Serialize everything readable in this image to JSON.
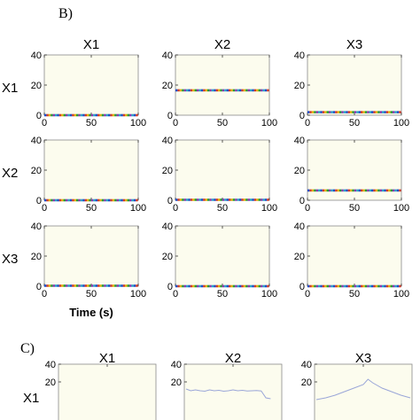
{
  "panel_b": {
    "label": "B)"
  },
  "panel_c": {
    "label": "C)"
  },
  "chart_data": [
    {
      "type": "line",
      "panel": "B)",
      "column_titles": [
        "X1",
        "X2",
        "X3"
      ],
      "row_titles": [
        "X1",
        "X2",
        "X3"
      ],
      "xlabel": "Time (s)",
      "xlim": [
        0,
        100
      ],
      "ylim": [
        0,
        40
      ],
      "xticks": [
        0,
        50,
        100
      ],
      "yticks": [
        0,
        20,
        40
      ],
      "grid": false,
      "series_style": "multicolored dashed line",
      "colors": [
        "#1f4fc8",
        "#d43a2a",
        "#e0b400",
        "#2a9a3a",
        "#8a3ab0",
        "#2aa6c8"
      ],
      "subplots": [
        {
          "row": "X1",
          "col": "X1",
          "x": [
            0,
            100
          ],
          "y": [
            0,
            0
          ]
        },
        {
          "row": "X1",
          "col": "X2",
          "x": [
            0,
            100
          ],
          "y": [
            16.5,
            16.5
          ]
        },
        {
          "row": "X1",
          "col": "X3",
          "x": [
            0,
            100
          ],
          "y": [
            2,
            2
          ]
        },
        {
          "row": "X2",
          "col": "X1",
          "x": [
            0,
            100
          ],
          "y": [
            0,
            0
          ]
        },
        {
          "row": "X2",
          "col": "X2",
          "x": [
            0,
            100
          ],
          "y": [
            0.3,
            0.3
          ]
        },
        {
          "row": "X2",
          "col": "X3",
          "x": [
            0,
            100
          ],
          "y": [
            6.5,
            6.5
          ]
        },
        {
          "row": "X3",
          "col": "X1",
          "x": [
            0,
            100
          ],
          "y": [
            0.3,
            0.3
          ]
        },
        {
          "row": "X3",
          "col": "X2",
          "x": [
            0,
            100
          ],
          "y": [
            0,
            0
          ]
        },
        {
          "row": "X3",
          "col": "X3",
          "x": [
            0,
            100
          ],
          "y": [
            0,
            0
          ]
        }
      ]
    },
    {
      "type": "line",
      "panel": "C)",
      "column_titles": [
        "X1",
        "X2",
        "X3"
      ],
      "row_titles": [
        "X1"
      ],
      "ylim": [
        0,
        40
      ],
      "yticks": [
        20,
        40
      ],
      "grid": false,
      "series_color": "#9aa6d8",
      "subplots": [
        {
          "row": "X1",
          "col": "X1",
          "x": [],
          "y": []
        },
        {
          "row": "X1",
          "col": "X2",
          "x": [
            0,
            5,
            10,
            15,
            20,
            25,
            30,
            35,
            40,
            45,
            50,
            55,
            60,
            65,
            70,
            75,
            80,
            85,
            90
          ],
          "y": [
            12,
            10,
            11,
            10,
            9.5,
            11,
            10,
            10.5,
            9.5,
            10,
            11,
            10,
            10.5,
            9.8,
            10,
            10.3,
            9.8,
            2,
            1
          ]
        },
        {
          "row": "X1",
          "col": "X3",
          "x": [
            0,
            10,
            20,
            30,
            40,
            50,
            55,
            60,
            70,
            80,
            90,
            100
          ],
          "y": [
            0,
            2,
            5,
            9,
            13,
            17,
            23,
            19,
            13,
            9,
            5,
            2
          ]
        }
      ]
    }
  ]
}
